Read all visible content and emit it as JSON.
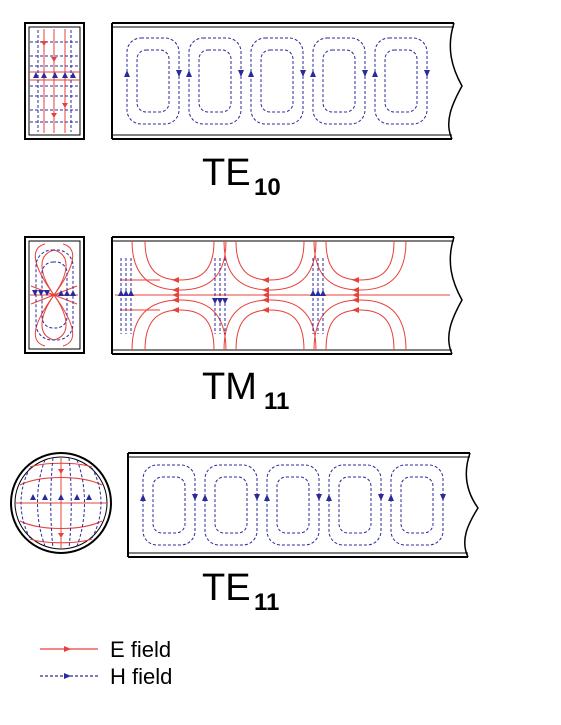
{
  "modes": [
    {
      "id": "te10",
      "main": "TE",
      "sub": "10"
    },
    {
      "id": "tm11",
      "main": "TM",
      "sub": "11"
    },
    {
      "id": "te11",
      "main": "TE",
      "sub": "11"
    }
  ],
  "legend": {
    "e_field": "E field",
    "h_field": "H field"
  },
  "colors": {
    "e_field": "#e8413a",
    "h_field": "#2a2a9c",
    "outline": "#000000"
  }
}
